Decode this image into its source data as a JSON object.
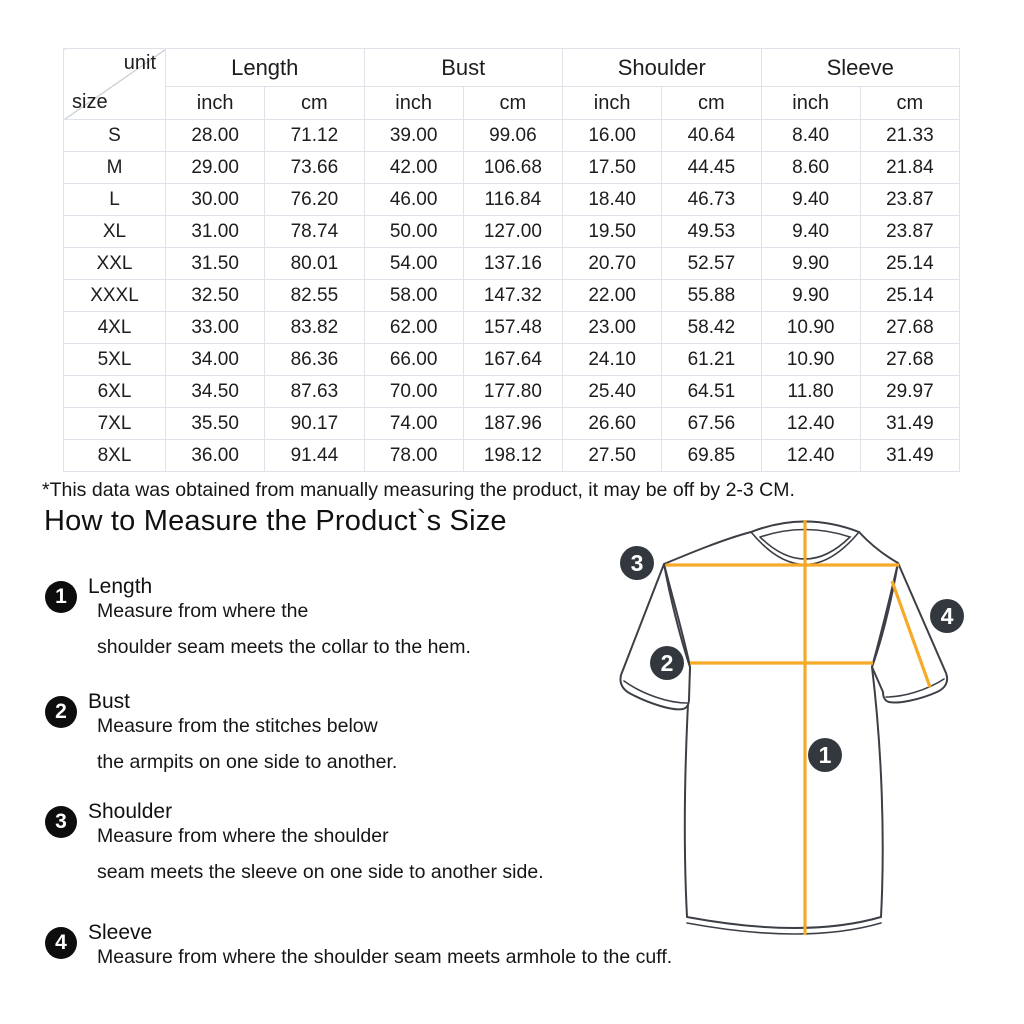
{
  "table": {
    "corner": {
      "top": "unit",
      "bottom": "size"
    },
    "groups": [
      {
        "label": "Length"
      },
      {
        "label": "Bust"
      },
      {
        "label": "Shoulder"
      },
      {
        "label": "Sleeve"
      }
    ],
    "unit_headers": [
      "inch",
      "cm",
      "inch",
      "cm",
      "inch",
      "cm",
      "inch",
      "cm"
    ],
    "rows": [
      {
        "size": "S",
        "values": [
          "28.00",
          "71.12",
          "39.00",
          "99.06",
          "16.00",
          "40.64",
          "8.40",
          "21.33"
        ]
      },
      {
        "size": "M",
        "values": [
          "29.00",
          "73.66",
          "42.00",
          "106.68",
          "17.50",
          "44.45",
          "8.60",
          "21.84"
        ]
      },
      {
        "size": "L",
        "values": [
          "30.00",
          "76.20",
          "46.00",
          "116.84",
          "18.40",
          "46.73",
          "9.40",
          "23.87"
        ]
      },
      {
        "size": "XL",
        "values": [
          "31.00",
          "78.74",
          "50.00",
          "127.00",
          "19.50",
          "49.53",
          "9.40",
          "23.87"
        ]
      },
      {
        "size": "XXL",
        "values": [
          "31.50",
          "80.01",
          "54.00",
          "137.16",
          "20.70",
          "52.57",
          "9.90",
          "25.14"
        ]
      },
      {
        "size": "XXXL",
        "values": [
          "32.50",
          "82.55",
          "58.00",
          "147.32",
          "22.00",
          "55.88",
          "9.90",
          "25.14"
        ]
      },
      {
        "size": "4XL",
        "values": [
          "33.00",
          "83.82",
          "62.00",
          "157.48",
          "23.00",
          "58.42",
          "10.90",
          "27.68"
        ]
      },
      {
        "size": "5XL",
        "values": [
          "34.00",
          "86.36",
          "66.00",
          "167.64",
          "24.10",
          "61.21",
          "10.90",
          "27.68"
        ]
      },
      {
        "size": "6XL",
        "values": [
          "34.50",
          "87.63",
          "70.00",
          "177.80",
          "25.40",
          "64.51",
          "11.80",
          "29.97"
        ]
      },
      {
        "size": "7XL",
        "values": [
          "35.50",
          "90.17",
          "74.00",
          "187.96",
          "26.60",
          "67.56",
          "12.40",
          "31.49"
        ]
      },
      {
        "size": "8XL",
        "values": [
          "36.00",
          "91.44",
          "78.00",
          "198.12",
          "27.50",
          "69.85",
          "12.40",
          "31.49"
        ]
      }
    ]
  },
  "note": "*This data was obtained from manually measuring the product, it may be off by 2-3 CM.",
  "heading": "How to Measure the Product`s Size",
  "instructions": [
    {
      "num": "1",
      "label": "Length",
      "lines": [
        "Measure from where the",
        "shoulder seam meets the collar to the hem."
      ]
    },
    {
      "num": "2",
      "label": "Bust",
      "lines": [
        "Measure from the stitches below",
        "the armpits on one side to another."
      ]
    },
    {
      "num": "3",
      "label": "Shoulder",
      "lines": [
        "Measure from where the shoulder",
        "seam meets the sleeve on one side to another side."
      ]
    },
    {
      "num": "4",
      "label": "Sleeve",
      "lines": [
        "Measure from where the shoulder seam meets armhole to the cuff."
      ]
    }
  ],
  "diagram": {
    "badges": [
      "1",
      "2",
      "3",
      "4"
    ],
    "line_color": "#f7a928",
    "badge_color": "#33383e",
    "outline_color": "#3c4046"
  }
}
